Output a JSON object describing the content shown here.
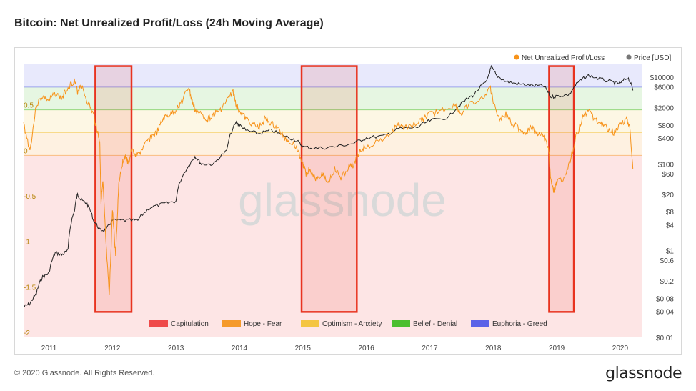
{
  "chart_title": "Bitcoin: Net Unrealized Profit/Loss (24h Moving Average)",
  "footer": {
    "copyright": "© 2020 Glassnode. All Rights Reserved.",
    "logo": "glassnode"
  },
  "watermark": "glassnode",
  "colors": {
    "nupl": "#f7931a",
    "price": "#222222",
    "capitulation": "#ef4a4a",
    "hope_fear": "#f59a2b",
    "optimism_anxiety": "#f4c542",
    "belief_denial": "#4cbf2f",
    "euphoria_greed": "#5b63e8",
    "box": "#e8331f"
  },
  "chart_data": {
    "type": "line",
    "title": "Bitcoin: Net Unrealized Profit/Loss (24h Moving Average)",
    "xlabel": "",
    "ylabel": "",
    "xlim": [
      2010.6,
      2020.35
    ],
    "x_ticks": [
      {
        "label": "2011",
        "value": 2011
      },
      {
        "label": "2012",
        "value": 2012
      },
      {
        "label": "2013",
        "value": 2013
      },
      {
        "label": "2014",
        "value": 2014
      },
      {
        "label": "2015",
        "value": 2015
      },
      {
        "label": "2016",
        "value": 2016
      },
      {
        "label": "2017",
        "value": 2017
      },
      {
        "label": "2018",
        "value": 2018
      },
      {
        "label": "2019",
        "value": 2019
      },
      {
        "label": "2020",
        "value": 2020
      }
    ],
    "y_left": {
      "range": [
        -2,
        1
      ],
      "ticks": [
        {
          "label": "0.5",
          "value": 0.5
        },
        {
          "label": "0",
          "value": 0
        },
        {
          "label": "-0.5",
          "value": -0.5
        },
        {
          "label": "-1",
          "value": -1
        },
        {
          "label": "-1.5",
          "value": -1.5
        },
        {
          "label": "-2",
          "value": -2
        }
      ]
    },
    "y_right": {
      "scale": "log",
      "range": [
        0.01,
        20000
      ],
      "ticks": [
        {
          "label": "$10000",
          "value": 10000
        },
        {
          "label": "$6000",
          "value": 6000
        },
        {
          "label": "$2000",
          "value": 2000
        },
        {
          "label": "$800",
          "value": 800
        },
        {
          "label": "$400",
          "value": 400
        },
        {
          "label": "$100",
          "value": 100
        },
        {
          "label": "$60",
          "value": 60
        },
        {
          "label": "$20",
          "value": 20
        },
        {
          "label": "$8",
          "value": 8
        },
        {
          "label": "$4",
          "value": 4
        },
        {
          "label": "$1",
          "value": 1
        },
        {
          "label": "$0.6",
          "value": 0.6
        },
        {
          "label": "$0.2",
          "value": 0.2
        },
        {
          "label": "$0.08",
          "value": 0.08
        },
        {
          "label": "$0.04",
          "value": 0.04
        },
        {
          "label": "$0.01",
          "value": 0.01
        }
      ]
    },
    "zones": [
      {
        "name": "Capitulation",
        "from": -2,
        "to": 0
      },
      {
        "name": "Hope - Fear",
        "from": 0,
        "to": 0.25
      },
      {
        "name": "Optimism - Anxiety",
        "from": 0.25,
        "to": 0.5
      },
      {
        "name": "Belief - Denial",
        "from": 0.5,
        "to": 0.75
      },
      {
        "name": "Euphoria - Greed",
        "from": 0.75,
        "to": 1
      }
    ],
    "highlight_boxes": [
      {
        "x_from": 2011.73,
        "x_to": 2012.3,
        "y_from": -1.72,
        "y_to": 0.98
      },
      {
        "x_from": 2014.98,
        "x_to": 2015.85,
        "y_from": -1.72,
        "y_to": 0.98
      },
      {
        "x_from": 2018.88,
        "x_to": 2019.27,
        "y_from": -1.72,
        "y_to": 0.98
      }
    ],
    "legend_top": [
      {
        "label": "Net Unrealized Profit/Loss",
        "color": "#f7931a"
      },
      {
        "label": "Price [USD]",
        "color": "#777777"
      }
    ],
    "legend_bottom": [
      "Capitulation",
      "Hope - Fear",
      "Optimism - Anxiety",
      "Belief - Denial",
      "Euphoria - Greed"
    ],
    "series": [
      {
        "name": "Net Unrealized Profit/Loss",
        "axis": "left",
        "points": [
          [
            2010.6,
            0.35
          ],
          [
            2010.7,
            0.05
          ],
          [
            2010.8,
            0.55
          ],
          [
            2010.9,
            0.65
          ],
          [
            2011.0,
            0.6
          ],
          [
            2011.1,
            0.68
          ],
          [
            2011.2,
            0.62
          ],
          [
            2011.3,
            0.75
          ],
          [
            2011.4,
            0.82
          ],
          [
            2011.45,
            0.7
          ],
          [
            2011.5,
            0.78
          ],
          [
            2011.6,
            0.6
          ],
          [
            2011.7,
            0.45
          ],
          [
            2011.75,
            0.3
          ],
          [
            2011.8,
            0.15
          ],
          [
            2011.82,
            -0.5
          ],
          [
            2011.85,
            -0.3
          ],
          [
            2011.9,
            -1.0
          ],
          [
            2011.95,
            -1.55
          ],
          [
            2012.0,
            -0.6
          ],
          [
            2012.05,
            -1.1
          ],
          [
            2012.1,
            -0.3
          ],
          [
            2012.15,
            -0.1
          ],
          [
            2012.2,
            0.0
          ],
          [
            2012.25,
            -0.1
          ],
          [
            2012.3,
            0.05
          ],
          [
            2012.4,
            0.0
          ],
          [
            2012.5,
            0.1
          ],
          [
            2012.6,
            0.2
          ],
          [
            2012.7,
            0.25
          ],
          [
            2012.8,
            0.4
          ],
          [
            2012.9,
            0.45
          ],
          [
            2013.0,
            0.5
          ],
          [
            2013.1,
            0.6
          ],
          [
            2013.2,
            0.75
          ],
          [
            2013.25,
            0.6
          ],
          [
            2013.3,
            0.5
          ],
          [
            2013.4,
            0.45
          ],
          [
            2013.5,
            0.4
          ],
          [
            2013.6,
            0.45
          ],
          [
            2013.7,
            0.5
          ],
          [
            2013.8,
            0.6
          ],
          [
            2013.9,
            0.7
          ],
          [
            2013.95,
            0.55
          ],
          [
            2014.0,
            0.5
          ],
          [
            2014.1,
            0.4
          ],
          [
            2014.2,
            0.35
          ],
          [
            2014.3,
            0.3
          ],
          [
            2014.4,
            0.4
          ],
          [
            2014.5,
            0.35
          ],
          [
            2014.6,
            0.3
          ],
          [
            2014.7,
            0.2
          ],
          [
            2014.8,
            0.15
          ],
          [
            2014.9,
            0.1
          ],
          [
            2015.0,
            -0.1
          ],
          [
            2015.05,
            -0.2
          ],
          [
            2015.1,
            -0.15
          ],
          [
            2015.2,
            -0.25
          ],
          [
            2015.3,
            -0.2
          ],
          [
            2015.4,
            -0.3
          ],
          [
            2015.5,
            -0.15
          ],
          [
            2015.6,
            -0.25
          ],
          [
            2015.7,
            -0.15
          ],
          [
            2015.8,
            -0.1
          ],
          [
            2015.9,
            0.05
          ],
          [
            2016.0,
            0.1
          ],
          [
            2016.2,
            0.15
          ],
          [
            2016.4,
            0.25
          ],
          [
            2016.5,
            0.35
          ],
          [
            2016.6,
            0.3
          ],
          [
            2016.8,
            0.35
          ],
          [
            2016.9,
            0.4
          ],
          [
            2017.0,
            0.45
          ],
          [
            2017.2,
            0.5
          ],
          [
            2017.4,
            0.55
          ],
          [
            2017.5,
            0.45
          ],
          [
            2017.6,
            0.55
          ],
          [
            2017.8,
            0.6
          ],
          [
            2017.95,
            0.75
          ],
          [
            2018.0,
            0.6
          ],
          [
            2018.1,
            0.4
          ],
          [
            2018.2,
            0.45
          ],
          [
            2018.3,
            0.35
          ],
          [
            2018.4,
            0.3
          ],
          [
            2018.5,
            0.25
          ],
          [
            2018.6,
            0.3
          ],
          [
            2018.7,
            0.25
          ],
          [
            2018.8,
            0.2
          ],
          [
            2018.88,
            0.05
          ],
          [
            2018.9,
            -0.25
          ],
          [
            2018.95,
            -0.4
          ],
          [
            2019.0,
            -0.3
          ],
          [
            2019.1,
            -0.25
          ],
          [
            2019.2,
            -0.1
          ],
          [
            2019.3,
            0.2
          ],
          [
            2019.4,
            0.4
          ],
          [
            2019.5,
            0.5
          ],
          [
            2019.6,
            0.4
          ],
          [
            2019.7,
            0.35
          ],
          [
            2019.8,
            0.3
          ],
          [
            2019.9,
            0.25
          ],
          [
            2020.0,
            0.35
          ],
          [
            2020.1,
            0.4
          ],
          [
            2020.15,
            0.3
          ],
          [
            2020.2,
            -0.15
          ]
        ]
      },
      {
        "name": "Price [USD]",
        "axis": "right",
        "points": [
          [
            2010.6,
            0.05
          ],
          [
            2010.7,
            0.06
          ],
          [
            2010.8,
            0.1
          ],
          [
            2010.9,
            0.25
          ],
          [
            2011.0,
            0.3
          ],
          [
            2011.1,
            0.9
          ],
          [
            2011.2,
            0.8
          ],
          [
            2011.3,
            1.0
          ],
          [
            2011.4,
            8.0
          ],
          [
            2011.45,
            20.0
          ],
          [
            2011.5,
            15.0
          ],
          [
            2011.6,
            12.0
          ],
          [
            2011.7,
            5.0
          ],
          [
            2011.8,
            3.0
          ],
          [
            2011.9,
            3.0
          ],
          [
            2012.0,
            5.0
          ],
          [
            2012.2,
            5.0
          ],
          [
            2012.4,
            5.0
          ],
          [
            2012.6,
            10.0
          ],
          [
            2012.8,
            12.0
          ],
          [
            2013.0,
            14.0
          ],
          [
            2013.2,
            90.0
          ],
          [
            2013.3,
            150.0
          ],
          [
            2013.4,
            100.0
          ],
          [
            2013.6,
            100.0
          ],
          [
            2013.8,
            200.0
          ],
          [
            2013.95,
            900.0
          ],
          [
            2014.0,
            800.0
          ],
          [
            2014.1,
            600.0
          ],
          [
            2014.3,
            500.0
          ],
          [
            2014.5,
            600.0
          ],
          [
            2014.7,
            450.0
          ],
          [
            2014.9,
            350.0
          ],
          [
            2015.0,
            250.0
          ],
          [
            2015.2,
            230.0
          ],
          [
            2015.5,
            250.0
          ],
          [
            2015.8,
            300.0
          ],
          [
            2016.0,
            400.0
          ],
          [
            2016.3,
            450.0
          ],
          [
            2016.5,
            650.0
          ],
          [
            2016.8,
            700.0
          ],
          [
            2017.0,
            1000.0
          ],
          [
            2017.3,
            1200.0
          ],
          [
            2017.5,
            2500.0
          ],
          [
            2017.7,
            4000.0
          ],
          [
            2017.9,
            8000.0
          ],
          [
            2017.97,
            17000.0
          ],
          [
            2018.05,
            11000.0
          ],
          [
            2018.2,
            8000.0
          ],
          [
            2018.4,
            7000.0
          ],
          [
            2018.6,
            6500.0
          ],
          [
            2018.8,
            6300.0
          ],
          [
            2018.9,
            3500.0
          ],
          [
            2019.0,
            3700.0
          ],
          [
            2019.2,
            4000.0
          ],
          [
            2019.35,
            8000.0
          ],
          [
            2019.5,
            11000.0
          ],
          [
            2019.7,
            9000.0
          ],
          [
            2019.9,
            7500.0
          ],
          [
            2020.0,
            7200.0
          ],
          [
            2020.12,
            10000.0
          ],
          [
            2020.2,
            5000.0
          ]
        ]
      }
    ]
  }
}
